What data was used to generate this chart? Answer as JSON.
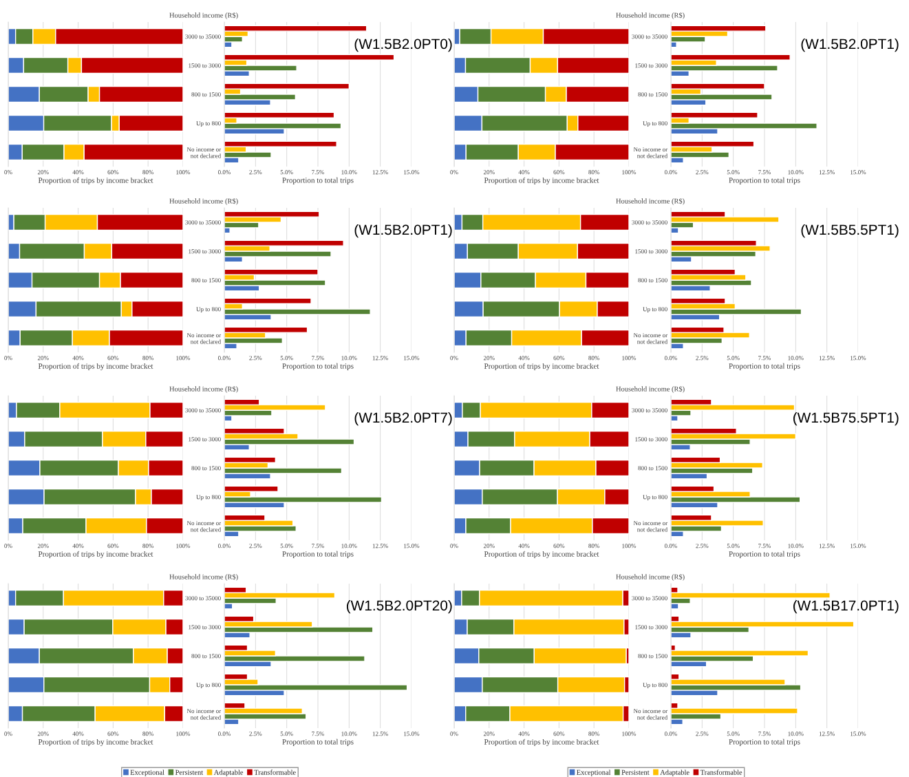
{
  "chart_data": [
    {
      "type": "bar",
      "orientation": "horizontal",
      "stacked": true,
      "tick_labels": "x",
      "grid": "x",
      "xlabel": "Proportion of trips by income bracket",
      "categories": [
        null,
        null,
        null,
        null,
        null
      ],
      "xlim": [
        0,
        100
      ],
      "xticks": [
        {
          "value": 0,
          "label": "0%"
        },
        {
          "value": 20,
          "label": "20%"
        },
        {
          "value": 40,
          "label": "40%"
        },
        {
          "value": 60,
          "label": "60%"
        },
        {
          "value": 80,
          "label": "80%"
        },
        {
          "value": 100,
          "label": "100%"
        }
      ],
      "series": [
        {
          "color": "#4472c4",
          "values": [
            4.2,
            8.8,
            17.8,
            20.3,
            8.0
          ]
        },
        {
          "color": "#548235",
          "values": [
            9.9,
            25.3,
            27.9,
            38.8,
            23.9
          ]
        },
        {
          "color": "#ffc000",
          "values": [
            13.0,
            7.8,
            6.5,
            4.4,
            11.5
          ]
        },
        {
          "color": "#c00000",
          "values": [
            72.9,
            58.1,
            47.8,
            36.5,
            56.6
          ]
        }
      ]
    },
    {
      "type": "bar",
      "orientation": "horizontal",
      "grid": "x",
      "xlabel": "Proportion to total trips",
      "ylabel": "Household income (R$)",
      "annotations": [
        "(W1.5B2.0PT0)"
      ],
      "categories": [
        "3000 to 35000",
        "1500 to 3000",
        "800 to 1500",
        "Up to 800",
        "No income or\nnot declared"
      ],
      "xlim": [
        0,
        15
      ],
      "xticks": [
        {
          "value": 0,
          "label": "0.0%"
        },
        {
          "value": 2.5,
          "label": "2.5%"
        },
        {
          "value": 5,
          "label": "5.0%"
        },
        {
          "value": 7.5,
          "label": "7.5%"
        },
        {
          "value": 10,
          "label": "10.0%"
        },
        {
          "value": 12.5,
          "label": "12.5%"
        },
        {
          "value": 15,
          "label": "15.0%"
        }
      ],
      "series": [
        {
          "color": "#4472c4",
          "values": [
            0.6,
            2.0,
            3.7,
            4.8,
            1.15
          ]
        },
        {
          "color": "#548235",
          "values": [
            1.45,
            5.8,
            5.7,
            9.35,
            3.75
          ]
        },
        {
          "color": "#ffc000",
          "values": [
            1.9,
            1.8,
            1.3,
            1.0,
            1.75
          ]
        },
        {
          "color": "#c00000",
          "values": [
            11.4,
            13.6,
            10.0,
            8.8,
            9.0
          ]
        }
      ]
    },
    {
      "type": "bar",
      "orientation": "horizontal",
      "stacked": true,
      "tick_labels": "x",
      "grid": "x",
      "xlabel": "Proportion of trips by income bracket",
      "categories": [
        null,
        null,
        null,
        null,
        null
      ],
      "xlim": [
        0,
        100
      ],
      "xticks": [
        {
          "value": 0,
          "label": "0%"
        },
        {
          "value": 20,
          "label": "20%"
        },
        {
          "value": 40,
          "label": "40%"
        },
        {
          "value": 60,
          "label": "60%"
        },
        {
          "value": 80,
          "label": "80%"
        },
        {
          "value": 100,
          "label": "100%"
        }
      ],
      "series": [
        {
          "color": "#4472c4",
          "values": [
            3.2,
            6.5,
            13.6,
            15.9,
            6.8
          ]
        },
        {
          "color": "#548235",
          "values": [
            17.9,
            37.0,
            38.6,
            48.8,
            29.9
          ]
        },
        {
          "color": "#ffc000",
          "values": [
            29.9,
            15.7,
            12.0,
            6.1,
            21.2
          ]
        },
        {
          "color": "#c00000",
          "values": [
            49.0,
            40.8,
            35.8,
            29.2,
            42.1
          ]
        }
      ]
    },
    {
      "type": "bar",
      "orientation": "horizontal",
      "grid": "x",
      "xlabel": "Proportion to total trips",
      "ylabel": "Household income (R$)",
      "annotations": [
        "(W1.5B2.0PT1)"
      ],
      "categories": [
        "3000 to 35000",
        "1500 to 3000",
        "800 to 1500",
        "Up to 800",
        "No income or\nnot declared"
      ],
      "xlim": [
        0,
        15
      ],
      "xticks": [
        {
          "value": 0,
          "label": "0.0%"
        },
        {
          "value": 2.5,
          "label": "2.5%"
        },
        {
          "value": 5,
          "label": "5.0%"
        },
        {
          "value": 7.5,
          "label": "7.5%"
        },
        {
          "value": 10,
          "label": "10.0%"
        },
        {
          "value": 12.5,
          "label": "12.5%"
        },
        {
          "value": 15,
          "label": "15.0%"
        }
      ],
      "series": [
        {
          "color": "#4472c4",
          "values": [
            0.45,
            1.45,
            2.8,
            3.75,
            1.0
          ]
        },
        {
          "color": "#548235",
          "values": [
            2.75,
            8.55,
            8.1,
            11.7,
            4.65
          ]
        },
        {
          "color": "#ffc000",
          "values": [
            4.55,
            3.65,
            2.4,
            1.45,
            3.3
          ]
        },
        {
          "color": "#c00000",
          "values": [
            7.6,
            9.55,
            7.5,
            6.95,
            6.65
          ]
        }
      ]
    },
    {
      "type": "bar",
      "orientation": "horizontal",
      "stacked": true,
      "tick_labels": "x",
      "grid": "x",
      "xlabel": "Proportion of trips by income bracket",
      "categories": [
        null,
        null,
        null,
        null,
        null
      ],
      "xlim": [
        0,
        100
      ],
      "xticks": [
        {
          "value": 0,
          "label": "0%"
        },
        {
          "value": 20,
          "label": "20%"
        },
        {
          "value": 40,
          "label": "40%"
        },
        {
          "value": 60,
          "label": "60%"
        },
        {
          "value": 80,
          "label": "80%"
        },
        {
          "value": 100,
          "label": "100%"
        }
      ],
      "series": [
        {
          "color": "#4472c4",
          "values": [
            3.2,
            6.5,
            13.6,
            15.9,
            6.8
          ]
        },
        {
          "color": "#548235",
          "values": [
            17.9,
            37.0,
            38.6,
            48.8,
            29.9
          ]
        },
        {
          "color": "#ffc000",
          "values": [
            29.9,
            15.7,
            12.0,
            6.1,
            21.2
          ]
        },
        {
          "color": "#c00000",
          "values": [
            49.0,
            40.8,
            35.8,
            29.2,
            42.1
          ]
        }
      ]
    },
    {
      "type": "bar",
      "orientation": "horizontal",
      "grid": "x",
      "xlabel": "Proportion to total trips",
      "ylabel": "Household income (R$)",
      "annotations": [
        "(W1.5B2.0PT1)"
      ],
      "categories": [
        "3000 to 35000",
        "1500 to 3000",
        "800 to 1500",
        "Up to 800",
        "No income or\nnot declared"
      ],
      "xlim": [
        0,
        15
      ],
      "xticks": [
        {
          "value": 0,
          "label": "0.0%"
        },
        {
          "value": 2.5,
          "label": "2.5%"
        },
        {
          "value": 5,
          "label": "5.0%"
        },
        {
          "value": 7.5,
          "label": "7.5%"
        },
        {
          "value": 10,
          "label": "10.0%"
        },
        {
          "value": 12.5,
          "label": "12.5%"
        },
        {
          "value": 15,
          "label": "15.0%"
        }
      ],
      "series": [
        {
          "color": "#4472c4",
          "values": [
            0.45,
            1.45,
            2.8,
            3.75,
            1.0
          ]
        },
        {
          "color": "#548235",
          "values": [
            2.75,
            8.55,
            8.1,
            11.7,
            4.65
          ]
        },
        {
          "color": "#ffc000",
          "values": [
            4.55,
            3.65,
            2.4,
            1.45,
            3.3
          ]
        },
        {
          "color": "#c00000",
          "values": [
            7.6,
            9.55,
            7.5,
            6.95,
            6.65
          ]
        }
      ]
    },
    {
      "type": "bar",
      "orientation": "horizontal",
      "stacked": true,
      "tick_labels": "x",
      "grid": "x",
      "xlabel": "Proportion of trips by income bracket",
      "categories": [
        null,
        null,
        null,
        null,
        null
      ],
      "xlim": [
        0,
        100
      ],
      "xticks": [
        {
          "value": 0,
          "label": "0%"
        },
        {
          "value": 20,
          "label": "20%"
        },
        {
          "value": 40,
          "label": "40%"
        },
        {
          "value": 60,
          "label": "60%"
        },
        {
          "value": 80,
          "label": "80%"
        },
        {
          "value": 100,
          "label": "100%"
        }
      ],
      "series": [
        {
          "color": "#4472c4",
          "values": [
            4.5,
            7.6,
            15.3,
            16.6,
            6.8
          ]
        },
        {
          "color": "#548235",
          "values": [
            11.9,
            29.1,
            31.2,
            43.7,
            26.1
          ]
        },
        {
          "color": "#ffc000",
          "values": [
            55.9,
            33.9,
            28.9,
            21.6,
            40.0
          ]
        },
        {
          "color": "#c00000",
          "values": [
            27.7,
            29.4,
            24.6,
            18.1,
            27.1
          ]
        }
      ]
    },
    {
      "type": "bar",
      "orientation": "horizontal",
      "grid": "x",
      "xlabel": "Proportion to total trips",
      "ylabel": "Household income (R$)",
      "annotations": [
        "(W1.5B5.5PT1)"
      ],
      "categories": [
        "3000 to 35000",
        "1500 to 3000",
        "800 to 1500",
        "Up to 800",
        "No income or\nnot declared"
      ],
      "xlim": [
        0,
        15
      ],
      "xticks": [
        {
          "value": 0,
          "label": "0.0%"
        },
        {
          "value": 2.5,
          "label": "2.5%"
        },
        {
          "value": 5,
          "label": "5.0%"
        },
        {
          "value": 7.5,
          "label": "7.5%"
        },
        {
          "value": 10,
          "label": "10.0%"
        },
        {
          "value": 12.5,
          "label": "12.5%"
        },
        {
          "value": 15,
          "label": "15.0%"
        }
      ],
      "series": [
        {
          "color": "#4472c4",
          "values": [
            0.6,
            1.65,
            3.15,
            3.9,
            1.0
          ]
        },
        {
          "color": "#548235",
          "values": [
            1.8,
            6.8,
            6.45,
            10.45,
            4.1
          ]
        },
        {
          "color": "#ffc000",
          "values": [
            8.65,
            7.95,
            6.0,
            5.15,
            6.3
          ]
        },
        {
          "color": "#c00000",
          "values": [
            4.35,
            6.85,
            5.15,
            4.35,
            4.25
          ]
        }
      ]
    },
    {
      "type": "bar",
      "orientation": "horizontal",
      "stacked": true,
      "tick_labels": "x",
      "grid": "x",
      "xlabel": "Proportion of trips by income bracket",
      "categories": [
        null,
        null,
        null,
        null,
        null
      ],
      "xlim": [
        0,
        100
      ],
      "xticks": [
        {
          "value": 0,
          "label": "0%"
        },
        {
          "value": 20,
          "label": "20%"
        },
        {
          "value": 40,
          "label": "40%"
        },
        {
          "value": 60,
          "label": "60%"
        },
        {
          "value": 80,
          "label": "80%"
        },
        {
          "value": 100,
          "label": "100%"
        }
      ],
      "series": [
        {
          "color": "#4472c4",
          "values": [
            4.7,
            9.4,
            18.1,
            20.5,
            8.3
          ]
        },
        {
          "color": "#548235",
          "values": [
            24.8,
            44.5,
            44.9,
            52.3,
            36.2
          ]
        },
        {
          "color": "#ffc000",
          "values": [
            51.6,
            24.8,
            17.3,
            9.1,
            34.6
          ]
        },
        {
          "color": "#c00000",
          "values": [
            18.9,
            21.3,
            19.7,
            18.1,
            20.9
          ]
        }
      ]
    },
    {
      "type": "bar",
      "orientation": "horizontal",
      "grid": "x",
      "xlabel": "Proportion to total trips",
      "ylabel": "Household income (R$)",
      "annotations": [
        "(W1.5B2.0PT7)"
      ],
      "categories": [
        "3000 to 35000",
        "1500 to 3000",
        "800 to 1500",
        "Up to 800",
        "No income or\nnot declared"
      ],
      "xlim": [
        0,
        15
      ],
      "xticks": [
        {
          "value": 0,
          "label": "0.0%"
        },
        {
          "value": 2.5,
          "label": "2.5%"
        },
        {
          "value": 5,
          "label": "5.0%"
        },
        {
          "value": 7.5,
          "label": "7.5%"
        },
        {
          "value": 10,
          "label": "10.0%"
        },
        {
          "value": 12.5,
          "label": "12.5%"
        },
        {
          "value": 15,
          "label": "15.0%"
        }
      ],
      "series": [
        {
          "color": "#4472c4",
          "values": [
            0.6,
            2.0,
            3.7,
            4.8,
            1.15
          ]
        },
        {
          "color": "#548235",
          "values": [
            3.8,
            10.4,
            9.4,
            12.6,
            5.75
          ]
        },
        {
          "color": "#ffc000",
          "values": [
            8.1,
            5.9,
            3.5,
            2.1,
            5.5
          ]
        },
        {
          "color": "#c00000",
          "values": [
            2.8,
            4.8,
            4.1,
            4.3,
            3.25
          ]
        }
      ]
    },
    {
      "type": "bar",
      "orientation": "horizontal",
      "stacked": true,
      "tick_labels": "x",
      "grid": "x",
      "xlabel": "Proportion of trips by income bracket",
      "categories": [
        null,
        null,
        null,
        null,
        null
      ],
      "xlim": [
        0,
        100
      ],
      "xticks": [
        {
          "value": 0,
          "label": "0%"
        },
        {
          "value": 20,
          "label": "20%"
        },
        {
          "value": 40,
          "label": "40%"
        },
        {
          "value": 60,
          "label": "60%"
        },
        {
          "value": 80,
          "label": "80%"
        },
        {
          "value": 100,
          "label": "100%"
        }
      ],
      "series": [
        {
          "color": "#4472c4",
          "values": [
            4.7,
            7.9,
            14.6,
            16.1,
            6.7
          ]
        },
        {
          "color": "#548235",
          "values": [
            10.3,
            26.7,
            31.1,
            43.0,
            25.6
          ]
        },
        {
          "color": "#ffc000",
          "values": [
            63.7,
            43.0,
            35.4,
            27.1,
            46.8
          ]
        },
        {
          "color": "#c00000",
          "values": [
            21.3,
            22.4,
            18.9,
            13.8,
            20.9
          ]
        }
      ]
    },
    {
      "type": "bar",
      "orientation": "horizontal",
      "grid": "x",
      "xlabel": "Proportion to total trips",
      "ylabel": "Household income (R$)",
      "annotations": [
        "(W1.5B75.5PT1)"
      ],
      "categories": [
        "3000 to 35000",
        "1500 to 3000",
        "800 to 1500",
        "Up to 800",
        "No income or\nnot declared"
      ],
      "xlim": [
        0,
        15
      ],
      "xticks": [
        {
          "value": 0,
          "label": "0.0%"
        },
        {
          "value": 2.5,
          "label": "2.5%"
        },
        {
          "value": 5,
          "label": "5.0%"
        },
        {
          "value": 7.5,
          "label": "7.5%"
        },
        {
          "value": 10,
          "label": "10.0%"
        },
        {
          "value": 12.5,
          "label": "12.5%"
        },
        {
          "value": 15,
          "label": "15.0%"
        }
      ],
      "series": [
        {
          "color": "#4472c4",
          "values": [
            0.55,
            1.55,
            2.9,
            3.75,
            1.0
          ]
        },
        {
          "color": "#548235",
          "values": [
            1.6,
            6.35,
            6.55,
            10.35,
            4.05
          ]
        },
        {
          "color": "#ffc000",
          "values": [
            9.9,
            10.0,
            7.35,
            6.35,
            7.4
          ]
        },
        {
          "color": "#c00000",
          "values": [
            3.25,
            5.25,
            3.95,
            3.45,
            3.25
          ]
        }
      ]
    },
    {
      "type": "bar",
      "orientation": "horizontal",
      "stacked": true,
      "tick_labels": "x",
      "grid": "x",
      "legend": "bottom",
      "xlabel": "Proportion of trips by income bracket",
      "categories": [
        null,
        null,
        null,
        null,
        null
      ],
      "xlim": [
        0,
        100
      ],
      "xticks": [
        {
          "value": 0,
          "label": "0%"
        },
        {
          "value": 20,
          "label": "20%"
        },
        {
          "value": 40,
          "label": "40%"
        },
        {
          "value": 60,
          "label": "60%"
        },
        {
          "value": 80,
          "label": "80%"
        },
        {
          "value": 100,
          "label": "100%"
        }
      ],
      "series": [
        {
          "name": "Exceptional",
          "color": "#4472c4",
          "values": [
            4.2,
            9.1,
            17.8,
            20.4,
            8.1
          ]
        },
        {
          "name": "Persistent",
          "color": "#548235",
          "values": [
            27.4,
            50.7,
            53.8,
            60.5,
            41.6
          ]
        },
        {
          "name": "Adaptable",
          "color": "#ffc000",
          "values": [
            57.3,
            30.4,
            19.4,
            11.5,
            39.8
          ]
        },
        {
          "name": "Transformable",
          "color": "#c00000",
          "values": [
            11.1,
            9.8,
            9.0,
            7.6,
            10.5
          ]
        }
      ]
    },
    {
      "type": "bar",
      "orientation": "horizontal",
      "grid": "x",
      "xlabel": "Proportion to total trips",
      "ylabel": "Household income (R$)",
      "annotations": [
        "(W1.5B2.0PT20)"
      ],
      "categories": [
        "3000 to 35000",
        "1500 to 3000",
        "800 to 1500",
        "Up to 800",
        "No income or\nnot declared"
      ],
      "xlim": [
        0,
        15
      ],
      "xticks": [
        {
          "value": 0,
          "label": "0.0%"
        },
        {
          "value": 2.5,
          "label": "2.5%"
        },
        {
          "value": 5,
          "label": "5.0%"
        },
        {
          "value": 7.5,
          "label": "7.5%"
        },
        {
          "value": 10,
          "label": "10.0%"
        },
        {
          "value": 12.5,
          "label": "12.5%"
        },
        {
          "value": 15,
          "label": "15.0%"
        }
      ],
      "series": [
        {
          "color": "#4472c4",
          "values": [
            0.65,
            2.05,
            3.75,
            4.8,
            1.15
          ]
        },
        {
          "color": "#548235",
          "values": [
            4.15,
            11.9,
            11.25,
            14.65,
            6.55
          ]
        },
        {
          "color": "#ffc000",
          "values": [
            8.85,
            7.05,
            4.1,
            2.7,
            6.25
          ]
        },
        {
          "color": "#c00000",
          "values": [
            1.75,
            2.35,
            1.85,
            1.85,
            1.65
          ]
        }
      ]
    },
    {
      "type": "bar",
      "orientation": "horizontal",
      "stacked": true,
      "tick_labels": "x",
      "grid": "x",
      "legend": "bottom",
      "xlabel": "Proportion of trips by income bracket",
      "categories": [
        null,
        null,
        null,
        null,
        null
      ],
      "xlim": [
        0,
        100
      ],
      "xticks": [
        {
          "value": 0,
          "label": "0%"
        },
        {
          "value": 20,
          "label": "20%"
        },
        {
          "value": 40,
          "label": "40%"
        },
        {
          "value": 60,
          "label": "60%"
        },
        {
          "value": 80,
          "label": "80%"
        },
        {
          "value": 100,
          "label": "100%"
        }
      ],
      "series": [
        {
          "name": "Exceptional",
          "color": "#4472c4",
          "values": [
            4.3,
            7.5,
            14.1,
            16.1,
            6.6
          ]
        },
        {
          "name": "Persistent",
          "color": "#548235",
          "values": [
            10.2,
            26.7,
            31.7,
            43.2,
            25.3
          ]
        },
        {
          "name": "Adaptable",
          "color": "#ffc000",
          "values": [
            82.0,
            63.0,
            52.7,
            38.2,
            64.8
          ]
        },
        {
          "name": "Transformable",
          "color": "#c00000",
          "values": [
            3.5,
            2.8,
            1.5,
            2.5,
            3.3
          ]
        }
      ]
    },
    {
      "type": "bar",
      "orientation": "horizontal",
      "grid": "x",
      "xlabel": "Proportion to total trips",
      "ylabel": "Household income (R$)",
      "annotations": [
        "(W1.5B17.0PT1)"
      ],
      "categories": [
        "3000 to 35000",
        "1500 to 3000",
        "800 to 1500",
        "Up to 800",
        "No income or\nnot declared"
      ],
      "xlim": [
        0,
        15
      ],
      "xticks": [
        {
          "value": 0,
          "label": "0.0%"
        },
        {
          "value": 2.5,
          "label": "2.5%"
        },
        {
          "value": 5,
          "label": "5.0%"
        },
        {
          "value": 7.5,
          "label": "7.5%"
        },
        {
          "value": 10,
          "label": "10.0%"
        },
        {
          "value": 12.5,
          "label": "12.5%"
        },
        {
          "value": 15,
          "label": "15.0%"
        }
      ],
      "series": [
        {
          "color": "#4472c4",
          "values": [
            0.6,
            1.6,
            2.85,
            3.75,
            0.95
          ]
        },
        {
          "color": "#548235",
          "values": [
            1.55,
            6.25,
            6.6,
            10.4,
            4.0
          ]
        },
        {
          "color": "#ffc000",
          "values": [
            12.75,
            14.65,
            11.0,
            9.15,
            10.15
          ]
        },
        {
          "color": "#c00000",
          "values": [
            0.55,
            0.65,
            0.35,
            0.65,
            0.55
          ]
        }
      ]
    }
  ]
}
